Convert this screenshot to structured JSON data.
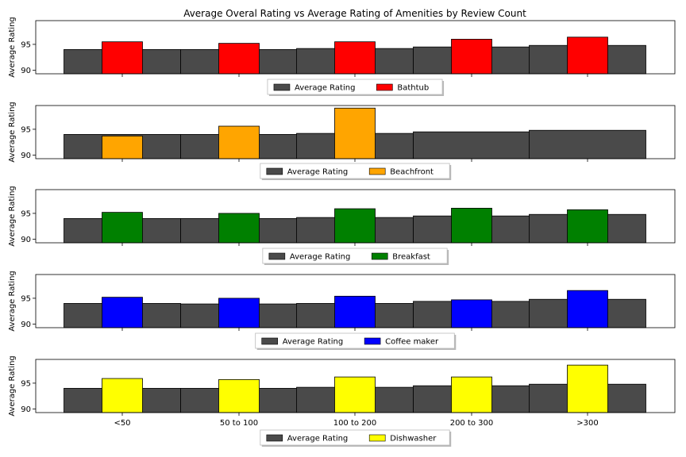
{
  "chart_data": {
    "type": "bar",
    "title": "Average Overal Rating vs Average Rating of Amenities by Review Count",
    "categories": [
      "<50",
      "50 to 100",
      "100 to 200",
      "200 to 300",
      ">300"
    ],
    "ylabel": "Average Rating",
    "ylim": [
      89.3,
      99.6
    ],
    "yticks": [
      90,
      95
    ],
    "base_series_name": "Average Rating",
    "base_color": "#4a4a4a",
    "panels": [
      {
        "amenity": "Bathtub",
        "color": "#ff0000",
        "average_rating": [
          94.0,
          94.0,
          94.2,
          94.5,
          94.8
        ],
        "amenity_rating": [
          95.5,
          95.2,
          95.5,
          96.0,
          96.4
        ]
      },
      {
        "amenity": "Beachfront",
        "color": "#ffa500",
        "average_rating": [
          94.0,
          94.0,
          94.2,
          94.5,
          94.8
        ],
        "amenity_rating": [
          93.7,
          95.6,
          99.1,
          null,
          null
        ]
      },
      {
        "amenity": "Breakfast",
        "color": "#008000",
        "average_rating": [
          94.0,
          94.0,
          94.2,
          94.5,
          94.8
        ],
        "amenity_rating": [
          95.2,
          95.0,
          95.9,
          96.0,
          95.7
        ]
      },
      {
        "amenity": "Coffee maker",
        "color": "#0000ff",
        "average_rating": [
          94.0,
          93.9,
          94.0,
          94.4,
          94.8
        ],
        "amenity_rating": [
          95.2,
          95.0,
          95.4,
          94.7,
          96.5
        ]
      },
      {
        "amenity": "Dishwasher",
        "color": "#ffff00",
        "average_rating": [
          94.0,
          94.0,
          94.2,
          94.5,
          94.8
        ],
        "amenity_rating": [
          95.9,
          95.7,
          96.2,
          96.2,
          98.5
        ]
      }
    ],
    "legend_placement": "below each panel, centered"
  }
}
